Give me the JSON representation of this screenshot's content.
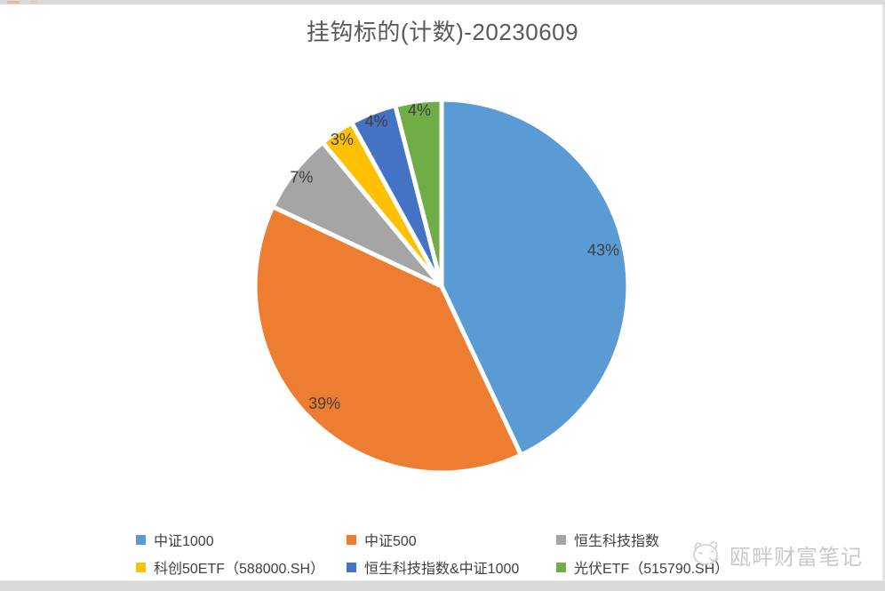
{
  "title": "挂钩标的(计数)-20230609",
  "chart_data": {
    "type": "pie",
    "title": "挂钩标的(计数)-20230609",
    "direction": "clockwise",
    "start_angle_deg": 0,
    "legend_position": "bottom",
    "slices": [
      {
        "label": "中证1000",
        "value_pct": 43,
        "data_label": "43%",
        "color": "#5B9BD5"
      },
      {
        "label": "中证500",
        "value_pct": 39,
        "data_label": "39%",
        "color": "#ED7D31"
      },
      {
        "label": "恒生科技指数",
        "value_pct": 7,
        "data_label": "7%",
        "color": "#A5A5A5"
      },
      {
        "label": "科创50ETF（588000.SH）",
        "value_pct": 3,
        "data_label": "3%",
        "color": "#FFC000"
      },
      {
        "label": "恒生科技指数&中证1000",
        "value_pct": 4,
        "data_label": "4%",
        "color": "#4472C4"
      },
      {
        "label": "光伏ETF（515790.SH）",
        "value_pct": 4,
        "data_label": "4%",
        "color": "#70AD47"
      }
    ]
  },
  "watermark": {
    "text": "瓯畔财富笔记"
  }
}
